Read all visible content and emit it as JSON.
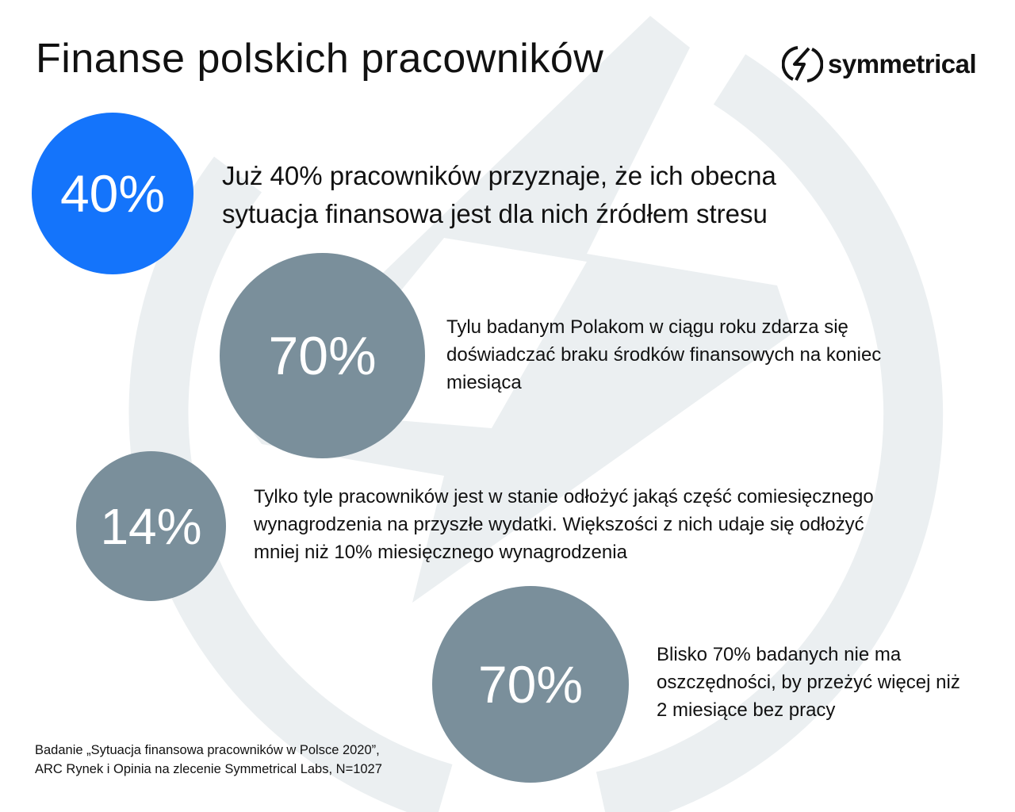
{
  "title": "Finanse polskich pracowników",
  "logo": {
    "text": "symmetrical",
    "icon": "lightning-circle-icon"
  },
  "colors": {
    "accent_blue": "#1474fb",
    "circle_gray": "#7a8f9b",
    "watermark": "#ebeff1"
  },
  "stats": [
    {
      "value": "40%",
      "text": "Już 40% pracowników przyznaje, że ich obecna sytuacja finansowa jest dla nich źródłem stresu"
    },
    {
      "value": "70%",
      "text": "Tylu badanym Polakom w ciągu roku zdarza się doświadczać braku środków finansowych na koniec miesiąca"
    },
    {
      "value": "14%",
      "text": "Tylko tyle pracowników jest w stanie odłożyć jakąś część comiesięcznego wynagrodzenia na przyszłe wydatki. Większości z nich udaje się odłożyć mniej niż 10% miesięcznego wynagrodzenia"
    },
    {
      "value": "70%",
      "text": "Blisko 70% badanych nie ma oszczędności, by przeżyć więcej niż 2 miesiące bez pracy"
    }
  ],
  "footnote": {
    "line1": "Badanie „Sytuacja finansowa pracowników w Polsce 2020”,",
    "line2": "ARC Rynek i Opinia na zlecenie Symmetrical Labs, N=1027"
  }
}
